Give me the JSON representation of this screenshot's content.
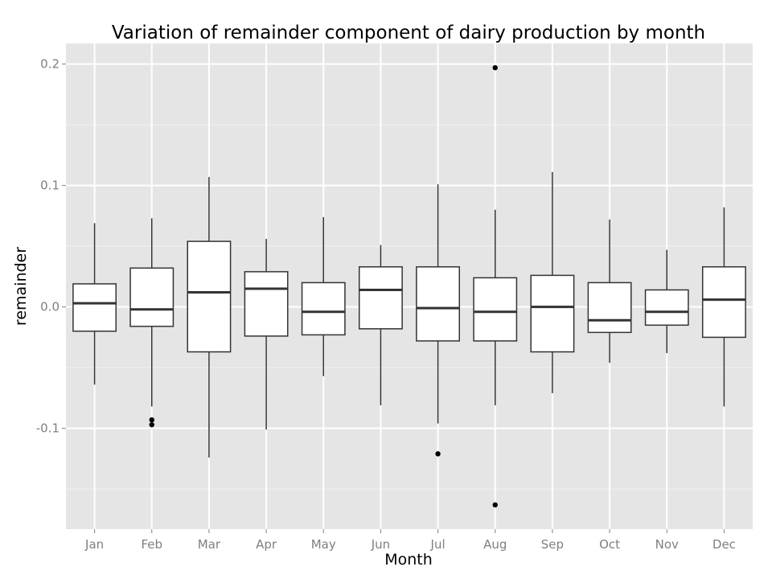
{
  "chart_data": {
    "type": "boxplot",
    "title": "Variation of remainder component of dairy production by month",
    "xlabel": "Month",
    "ylabel": "remainder",
    "ylim": [
      -0.183,
      0.217
    ],
    "y_ticks": [
      -0.1,
      0.0,
      0.1,
      0.2
    ],
    "y_tick_labels": [
      "-0.1",
      "0.0",
      "0.1",
      "0.2"
    ],
    "grid": true,
    "categories": [
      "Jan",
      "Feb",
      "Mar",
      "Apr",
      "May",
      "Jun",
      "Jul",
      "Aug",
      "Sep",
      "Oct",
      "Nov",
      "Dec"
    ],
    "boxes": [
      {
        "month": "Jan",
        "whisker_low": -0.064,
        "q1": -0.02,
        "median": 0.003,
        "q3": 0.019,
        "whisker_high": 0.069,
        "outliers": []
      },
      {
        "month": "Feb",
        "whisker_low": -0.082,
        "q1": -0.016,
        "median": -0.002,
        "q3": 0.032,
        "whisker_high": 0.073,
        "outliers": [
          -0.093,
          -0.097
        ]
      },
      {
        "month": "Mar",
        "whisker_low": -0.124,
        "q1": -0.037,
        "median": 0.012,
        "q3": 0.054,
        "whisker_high": 0.107,
        "outliers": []
      },
      {
        "month": "Apr",
        "whisker_low": -0.101,
        "q1": -0.024,
        "median": 0.015,
        "q3": 0.029,
        "whisker_high": 0.056,
        "outliers": []
      },
      {
        "month": "May",
        "whisker_low": -0.057,
        "q1": -0.023,
        "median": -0.004,
        "q3": 0.02,
        "whisker_high": 0.074,
        "outliers": []
      },
      {
        "month": "Jun",
        "whisker_low": -0.081,
        "q1": -0.018,
        "median": 0.014,
        "q3": 0.033,
        "whisker_high": 0.051,
        "outliers": []
      },
      {
        "month": "Jul",
        "whisker_low": -0.096,
        "q1": -0.028,
        "median": -0.001,
        "q3": 0.033,
        "whisker_high": 0.101,
        "outliers": [
          -0.121
        ]
      },
      {
        "month": "Aug",
        "whisker_low": -0.081,
        "q1": -0.028,
        "median": -0.004,
        "q3": 0.024,
        "whisker_high": 0.08,
        "outliers": [
          0.197,
          -0.163
        ]
      },
      {
        "month": "Sep",
        "whisker_low": -0.071,
        "q1": -0.037,
        "median": 0.0,
        "q3": 0.026,
        "whisker_high": 0.111,
        "outliers": []
      },
      {
        "month": "Oct",
        "whisker_low": -0.046,
        "q1": -0.021,
        "median": -0.011,
        "q3": 0.02,
        "whisker_high": 0.072,
        "outliers": []
      },
      {
        "month": "Nov",
        "whisker_low": -0.038,
        "q1": -0.015,
        "median": -0.004,
        "q3": 0.014,
        "whisker_high": 0.047,
        "outliers": []
      },
      {
        "month": "Dec",
        "whisker_low": -0.082,
        "q1": -0.025,
        "median": 0.006,
        "q3": 0.033,
        "whisker_high": 0.082,
        "outliers": []
      }
    ],
    "colors": {
      "panel": "#e5e5e5",
      "grid": "#ffffff",
      "box_fill": "#ffffff",
      "box_stroke": "#333333",
      "outlier": "#000000"
    }
  }
}
